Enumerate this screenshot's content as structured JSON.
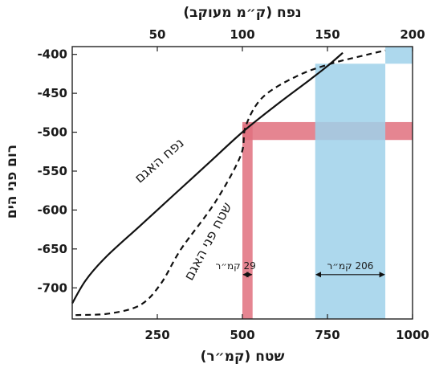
{
  "chart_data": {
    "type": "line",
    "xlabel_bottom": "שטח (קמ״ר)",
    "xlabel_top": "נפח (ק״מ מעוקב)",
    "ylabel": "רום פני הים",
    "x_bottom_range": [
      0,
      1000
    ],
    "x_top_range": [
      0,
      200
    ],
    "y_range": [
      -740,
      -390
    ],
    "x_bottom_ticks": [
      250,
      500,
      750,
      1000
    ],
    "x_top_ticks": [
      50,
      100,
      150,
      200
    ],
    "y_ticks": [
      -400,
      -450,
      -500,
      -550,
      -600,
      -650,
      -700
    ],
    "series": [
      {
        "name": "נפח האגם",
        "axis": "top",
        "style": "solid",
        "color": "#111111",
        "x": [
          0,
          8,
          20,
          40,
          60,
          80,
          100,
          120,
          140,
          150,
          159
        ],
        "y": [
          -720,
          -690,
          -660,
          -620,
          -580,
          -540,
          -500,
          -465,
          -432,
          -415,
          -398
        ]
      },
      {
        "name": "שטח פני האגם",
        "axis": "bottom",
        "style": "dashed",
        "color": "#111111",
        "x": [
          10,
          110,
          200,
          260,
          320,
          420,
          495,
          510,
          560,
          660,
          760,
          870,
          920
        ],
        "y": [
          -735,
          -733,
          -722,
          -695,
          -650,
          -590,
          -530,
          -492,
          -455,
          -428,
          -412,
          -400,
          -395
        ]
      }
    ],
    "bands": [
      {
        "orientation": "vertical",
        "x": [
          500,
          530
        ],
        "y": [
          -740,
          -490
        ],
        "color": "#e0707e"
      },
      {
        "orientation": "horizontal",
        "x": [
          500,
          1000
        ],
        "y": [
          -510,
          -487
        ],
        "color": "#e0707e"
      },
      {
        "orientation": "vertical",
        "x": [
          714,
          920
        ],
        "y": [
          -740,
          -412
        ],
        "color": "#9fd1ea"
      },
      {
        "orientation": "horizontal",
        "x": [
          920,
          1000
        ],
        "y": [
          -412,
          -390
        ],
        "color": "#9fd1ea"
      }
    ],
    "annotations": [
      {
        "text": "29 קמ״ר",
        "x": 530,
        "y": -683
      },
      {
        "text": "206 קמ״ר",
        "x": 817,
        "y": -683
      }
    ],
    "grid": false,
    "legend": "none"
  }
}
